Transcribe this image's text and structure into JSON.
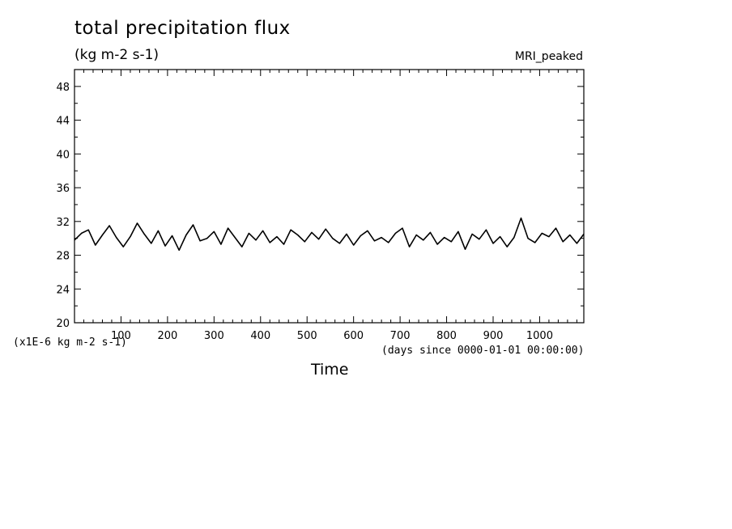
{
  "chart_data": {
    "type": "line",
    "title": "total precipitation flux",
    "units": "(kg m-2 s-1)",
    "model_label": "MRI_peaked",
    "y_scale_note": "(x1E-6 kg m-2 s-1)",
    "x_units_note": "(days since 0000-01-01 00:00:00)",
    "xlabel": "Time",
    "ylabel": "",
    "xlim": [
      0,
      1095
    ],
    "ylim": [
      20,
      50
    ],
    "xticks": [
      100,
      200,
      300,
      400,
      500,
      600,
      700,
      800,
      900,
      1000
    ],
    "yticks": [
      20,
      24,
      28,
      32,
      36,
      40,
      44,
      48
    ],
    "grid": false,
    "series": [
      {
        "x": [
          0,
          15,
          30,
          45,
          60,
          75,
          90,
          105,
          120,
          135,
          150,
          165,
          180,
          195,
          210,
          225,
          240,
          255,
          270,
          285,
          300,
          315,
          330,
          345,
          360,
          375,
          390,
          405,
          420,
          435,
          450,
          465,
          480,
          495,
          510,
          525,
          540,
          555,
          570,
          585,
          600,
          615,
          630,
          645,
          660,
          675,
          690,
          705,
          720,
          735,
          750,
          765,
          780,
          795,
          810,
          825,
          840,
          855,
          870,
          885,
          900,
          915,
          930,
          945,
          960,
          975,
          990,
          1005,
          1020,
          1035,
          1050,
          1065,
          1080,
          1095
        ],
        "y": [
          29.8,
          30.6,
          31.0,
          29.2,
          30.4,
          31.5,
          30.1,
          29.0,
          30.2,
          31.8,
          30.5,
          29.4,
          30.9,
          29.1,
          30.3,
          28.6,
          30.4,
          31.6,
          29.7,
          30.0,
          30.8,
          29.3,
          31.2,
          30.1,
          29.0,
          30.6,
          29.8,
          30.9,
          29.5,
          30.2,
          29.3,
          31.0,
          30.4,
          29.6,
          30.7,
          29.9,
          31.1,
          30.0,
          29.4,
          30.5,
          29.2,
          30.3,
          30.9,
          29.7,
          30.1,
          29.5,
          30.6,
          31.2,
          29.0,
          30.4,
          29.8,
          30.7,
          29.3,
          30.1,
          29.6,
          30.8,
          28.7,
          30.5,
          29.9,
          31.0,
          29.4,
          30.2,
          29.0,
          30.1,
          32.4,
          30.0,
          29.5,
          30.6,
          30.2,
          31.2,
          29.6,
          30.4,
          29.4,
          30.5
        ]
      }
    ]
  }
}
